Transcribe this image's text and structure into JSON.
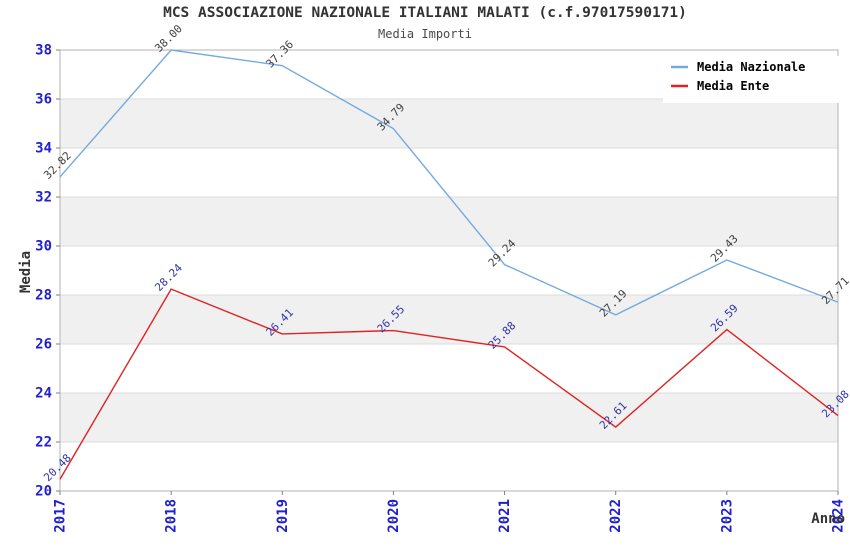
{
  "chart_data": {
    "type": "line",
    "title": "MCS ASSOCIAZIONE NAZIONALE ITALIANI MALATI (c.f.97017590171)",
    "subtitle": "Media Importi",
    "xlabel": "Anno",
    "ylabel": "Media",
    "categories": [
      "2017",
      "2018",
      "2019",
      "2020",
      "2021",
      "2022",
      "2023",
      "2024"
    ],
    "series": [
      {
        "name": "Media Nazionale",
        "values": [
          32.82,
          38.0,
          37.36,
          34.79,
          29.24,
          27.19,
          29.43,
          27.71
        ],
        "color": "#74aadd",
        "label_color": "#3f3f3f"
      },
      {
        "name": "Media Ente",
        "values": [
          20.48,
          28.24,
          26.41,
          26.55,
          25.88,
          22.61,
          26.59,
          23.08
        ],
        "color": "#e02222",
        "label_color": "#3333aa"
      }
    ],
    "ylim": [
      20,
      38
    ],
    "ytick_step": 2,
    "point_labels": true,
    "label_decimals": 2,
    "legend_position": "top-right",
    "grid": "horizontal alternating bands",
    "styles": {
      "axis_tick_label_color": "#2020cc",
      "axis_title_color": "#333333",
      "band_color": "#f0f0f0",
      "gridline_color": "#dcdcdc",
      "plot_border_color": "#b3b3b3",
      "tick_mark_color": "#808080",
      "legend_background": "#ffffff",
      "legend_text_color": "#000000"
    }
  }
}
